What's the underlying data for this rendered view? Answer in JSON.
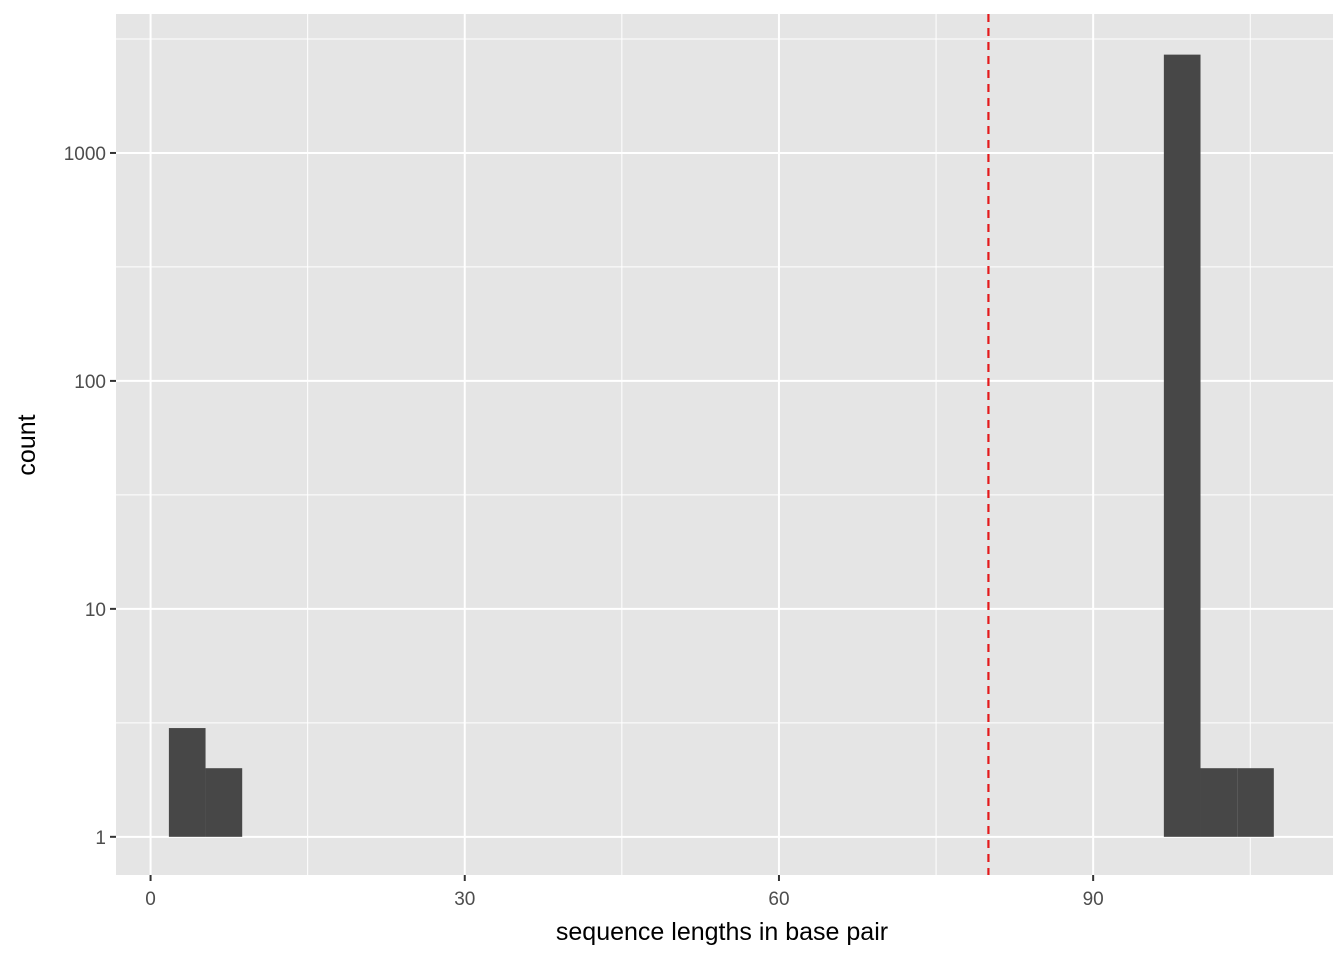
{
  "chart_data": {
    "type": "bar",
    "subtype": "histogram",
    "title": "",
    "xlabel": "sequence lengths in base pair",
    "ylabel": "count",
    "xlim": [
      -3.3,
      112.9
    ],
    "ylim": [
      0.68,
      4070
    ],
    "y_scale": "log10",
    "x_ticks": [
      0,
      30,
      60,
      90
    ],
    "x_tick_labels": [
      "0",
      "30",
      "60",
      "90"
    ],
    "y_ticks": [
      1,
      10,
      100,
      1000
    ],
    "y_tick_labels": [
      "1",
      "10",
      "100",
      "1000"
    ],
    "grid": true,
    "bin_width": 3.5,
    "bins": [
      {
        "center": 3.5,
        "count": 3
      },
      {
        "center": 7.0,
        "count": 2
      },
      {
        "center": 98.5,
        "count": 2700
      },
      {
        "center": 102.0,
        "count": 2
      },
      {
        "center": 105.5,
        "count": 2
      }
    ],
    "reference_line": {
      "x": 80,
      "style": "dashed",
      "color": "#e41a1c"
    },
    "colors": {
      "bar": "#474747",
      "panel": "#e5e5e5",
      "grid": "#ffffff"
    }
  }
}
